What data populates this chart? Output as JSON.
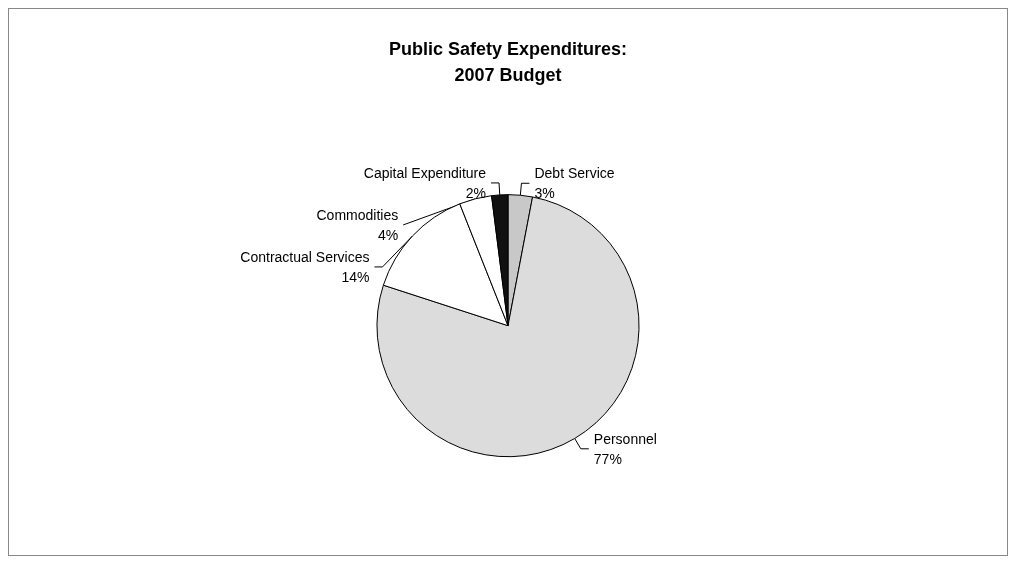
{
  "chart_data": {
    "type": "pie",
    "title": "Public Safety Expenditures:\n2007 Budget",
    "categories": [
      "Debt Service",
      "Personnel",
      "Contractual Services",
      "Commodities",
      "Capital Expenditure"
    ],
    "values": [
      3,
      77,
      14,
      4,
      2
    ],
    "value_labels": [
      "3%",
      "77%",
      "14%",
      "4%",
      "2%"
    ],
    "colors": [
      "#c8c8c8",
      "#dcdcdc",
      "#ffffff",
      "#ffffff",
      "#111111"
    ],
    "legend": false
  }
}
